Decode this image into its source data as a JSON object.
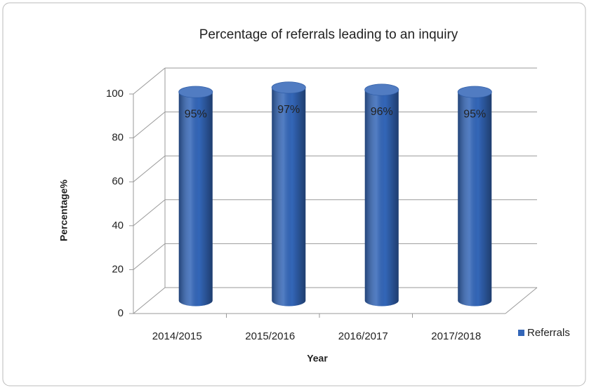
{
  "chart_data": {
    "type": "bar",
    "title": "Percentage of referrals leading to an inquiry",
    "x_label": "Year",
    "y_label": "Percentage%",
    "categories": [
      "2014/2015",
      "2015/2016",
      "2016/2017",
      "2017/2018"
    ],
    "series": [
      {
        "name": "Referrals",
        "color": "#3366b8",
        "values": [
          95,
          97,
          96,
          95
        ],
        "value_labels": [
          "95%",
          "97%",
          "96%",
          "95%"
        ]
      }
    ],
    "ylim": [
      0,
      100
    ],
    "yticks": [
      0,
      20,
      40,
      60,
      80,
      100
    ],
    "grid": true,
    "legend": "right"
  }
}
